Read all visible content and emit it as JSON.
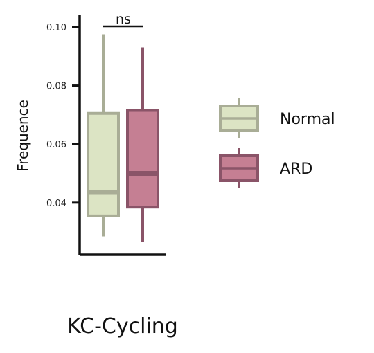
{
  "chart_data": {
    "type": "box",
    "category": "KC-Cycling",
    "ylabel": "Frequence",
    "ylim": [
      0.022,
      0.104
    ],
    "yticks": [
      0.04,
      0.06,
      0.08,
      0.1
    ],
    "ytick_labels": [
      "0.04",
      "0.06",
      "0.08",
      "0.10"
    ],
    "significance": "ns",
    "legend_position": "right",
    "series": [
      {
        "name": "Normal",
        "whisker_low": 0.0285,
        "q1": 0.0355,
        "median": 0.0435,
        "q3": 0.0705,
        "whisker_high": 0.0975,
        "fill": "#dce4c4",
        "stroke": "#a9ad96"
      },
      {
        "name": "ARD",
        "whisker_low": 0.0265,
        "q1": 0.0385,
        "median": 0.05,
        "q3": 0.0715,
        "whisker_high": 0.093,
        "fill": "#c57f93",
        "stroke": "#8a5468"
      }
    ]
  }
}
